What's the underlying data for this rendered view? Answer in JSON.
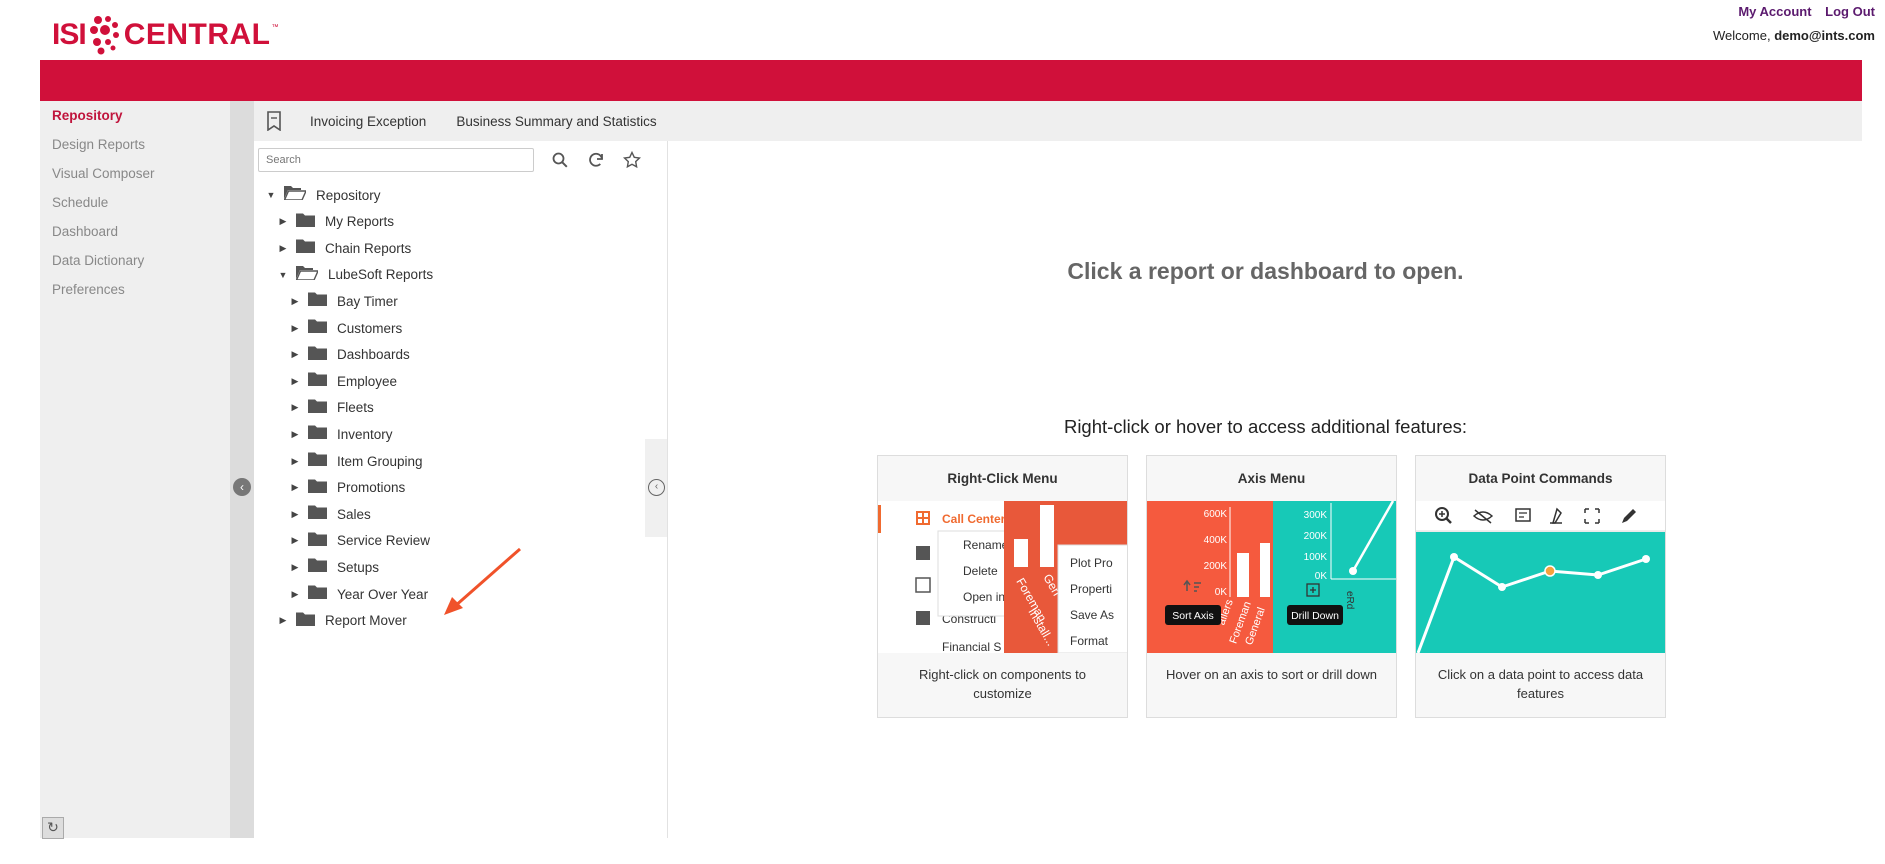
{
  "header": {
    "logo_left": "ISI",
    "logo_right": "CENTRAL",
    "logo_tm": "™",
    "my_account": "My Account",
    "log_out": "Log Out",
    "welcome_prefix": "Welcome,",
    "user": "demo@ints.com",
    "brand_color": "#d0103a"
  },
  "nav": {
    "items": [
      {
        "label": "Repository",
        "active": true
      },
      {
        "label": "Design Reports"
      },
      {
        "label": "Visual Composer"
      },
      {
        "label": "Schedule"
      },
      {
        "label": "Dashboard"
      },
      {
        "label": "Data Dictionary"
      },
      {
        "label": "Preferences"
      }
    ]
  },
  "tabs": {
    "bookmark_icon": "bookmark-icon",
    "items": [
      "Invoicing Exception",
      "Business Summary and Statistics"
    ]
  },
  "repo": {
    "search_placeholder": "Search",
    "tree": [
      {
        "label": "Repository",
        "open": true,
        "level": 0
      },
      {
        "label": "My Reports",
        "open": false,
        "level": 1
      },
      {
        "label": "Chain Reports",
        "open": false,
        "level": 1
      },
      {
        "label": "LubeSoft Reports",
        "open": true,
        "level": 1
      },
      {
        "label": "Bay Timer",
        "open": false,
        "level": 2
      },
      {
        "label": "Customers",
        "open": false,
        "level": 2
      },
      {
        "label": "Dashboards",
        "open": false,
        "level": 2
      },
      {
        "label": "Employee",
        "open": false,
        "level": 2
      },
      {
        "label": "Fleets",
        "open": false,
        "level": 2
      },
      {
        "label": "Inventory",
        "open": false,
        "level": 2
      },
      {
        "label": "Item Grouping",
        "open": false,
        "level": 2
      },
      {
        "label": "Promotions",
        "open": false,
        "level": 2
      },
      {
        "label": "Sales",
        "open": false,
        "level": 2
      },
      {
        "label": "Service Review",
        "open": false,
        "level": 2
      },
      {
        "label": "Setups",
        "open": false,
        "level": 2
      },
      {
        "label": "Year Over Year",
        "open": false,
        "level": 2
      },
      {
        "label": "Report Mover",
        "open": false,
        "level": 1
      }
    ]
  },
  "main": {
    "headline": "Click a report or dashboard to open.",
    "subline": "Right-click or hover to access additional features:",
    "cards": [
      {
        "title": "Right-Click Menu",
        "desc": "Right-click on components to customize",
        "menu_items": [
          "Call Center",
          "Rename",
          "Delete",
          "Open in",
          "Constructi",
          "Financial S"
        ],
        "submenu_items": [
          "Plot Pro",
          "Properti",
          "Save As",
          "Format"
        ],
        "chart_labels": [
          "Foreman",
          "Install...",
          "Gen"
        ]
      },
      {
        "title": "Axis Menu",
        "desc": "Hover on an axis to sort or drill down",
        "left_ticks": [
          "600K",
          "400K",
          "200K",
          "0K"
        ],
        "right_ticks": [
          "300K",
          "200K",
          "100K",
          "0K"
        ],
        "left_rotated": [
          "allers",
          "Foreman",
          "General"
        ],
        "right_rotated": "eRd",
        "sort_tooltip": "Sort Axis",
        "drill_tooltip": "Drill Down"
      },
      {
        "title": "Data Point Commands",
        "desc": "Click on a data point to access data features",
        "toolbar_icons": [
          "zoom-in-icon",
          "hide-icon",
          "data-table-icon",
          "clean-icon",
          "expand-icon",
          "edit-icon"
        ]
      }
    ]
  }
}
